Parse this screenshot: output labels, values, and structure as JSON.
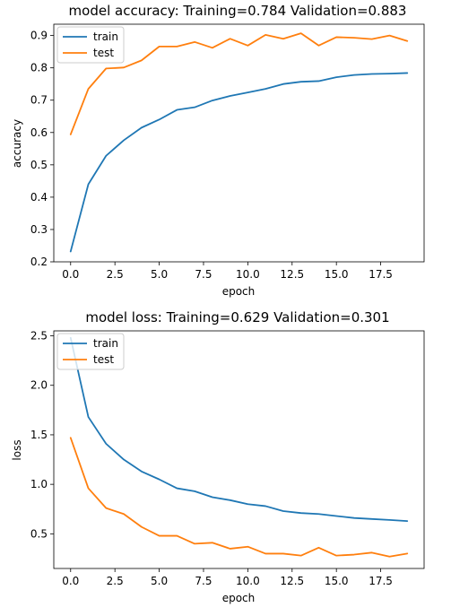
{
  "chart_data": [
    {
      "type": "line",
      "title": "model accuracy:  Training=0.784 Validation=0.883",
      "xlabel": "epoch",
      "ylabel": "accuracy",
      "xlim": [
        -0.95,
        19.95
      ],
      "ylim": [
        0.2,
        0.935
      ],
      "xticks": [
        "0.0",
        "2.5",
        "5.0",
        "7.5",
        "10.0",
        "12.5",
        "15.0",
        "17.5"
      ],
      "yticks": [
        "0.2",
        "0.3",
        "0.4",
        "0.5",
        "0.6",
        "0.7",
        "0.8",
        "0.9"
      ],
      "legend_position": "top-left",
      "grid": false,
      "x": [
        0,
        1,
        2,
        3,
        4,
        5,
        6,
        7,
        8,
        9,
        10,
        11,
        12,
        13,
        14,
        15,
        16,
        17,
        18,
        19
      ],
      "series": [
        {
          "name": "train",
          "color": "#1f77b4",
          "values": [
            0.232,
            0.44,
            0.528,
            0.576,
            0.615,
            0.64,
            0.67,
            0.678,
            0.699,
            0.713,
            0.724,
            0.735,
            0.75,
            0.757,
            0.759,
            0.771,
            0.778,
            0.781,
            0.782,
            0.784
          ]
        },
        {
          "name": "test",
          "color": "#ff7f0e",
          "values": [
            0.594,
            0.735,
            0.798,
            0.801,
            0.823,
            0.866,
            0.866,
            0.88,
            0.862,
            0.89,
            0.869,
            0.902,
            0.89,
            0.907,
            0.869,
            0.895,
            0.893,
            0.889,
            0.9,
            0.883
          ]
        }
      ]
    },
    {
      "type": "line",
      "title": "model loss:  Training=0.629 Validation=0.301",
      "xlabel": "epoch",
      "ylabel": "loss",
      "xlim": [
        -0.95,
        19.95
      ],
      "ylim": [
        0.15,
        2.55
      ],
      "xticks": [
        "0.0",
        "2.5",
        "5.0",
        "7.5",
        "10.0",
        "12.5",
        "15.0",
        "17.5"
      ],
      "yticks": [
        "0.5",
        "1.0",
        "1.5",
        "2.0",
        "2.5"
      ],
      "legend_position": "top-left",
      "grid": false,
      "x": [
        0,
        1,
        2,
        3,
        4,
        5,
        6,
        7,
        8,
        9,
        10,
        11,
        12,
        13,
        14,
        15,
        16,
        17,
        18,
        19
      ],
      "series": [
        {
          "name": "train",
          "color": "#1f77b4",
          "values": [
            2.48,
            1.68,
            1.41,
            1.25,
            1.13,
            1.05,
            0.96,
            0.93,
            0.87,
            0.84,
            0.8,
            0.78,
            0.73,
            0.71,
            0.7,
            0.68,
            0.66,
            0.65,
            0.64,
            0.629
          ]
        },
        {
          "name": "test",
          "color": "#ff7f0e",
          "values": [
            1.47,
            0.96,
            0.76,
            0.7,
            0.57,
            0.48,
            0.48,
            0.4,
            0.41,
            0.35,
            0.37,
            0.3,
            0.3,
            0.28,
            0.36,
            0.28,
            0.29,
            0.31,
            0.27,
            0.301
          ]
        }
      ]
    }
  ]
}
